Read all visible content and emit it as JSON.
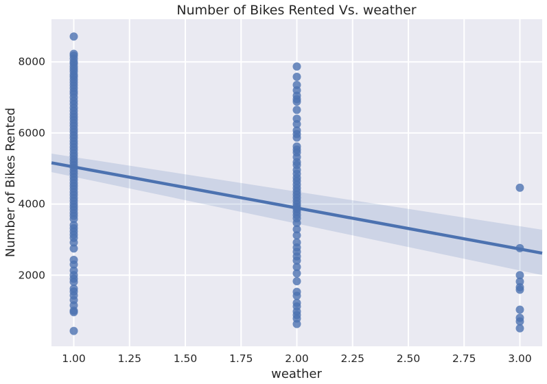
{
  "chart_data": {
    "type": "scatter",
    "title": "Number of Bikes Rented Vs. weather",
    "xlabel": "weather",
    "ylabel": "Number of Bikes Rented",
    "xlim": [
      0.9,
      3.1
    ],
    "ylim": [
      0,
      9200
    ],
    "x_ticks": [
      1.0,
      1.25,
      1.5,
      1.75,
      2.0,
      2.25,
      2.5,
      2.75,
      3.0
    ],
    "x_tick_labels": [
      "1.00",
      "1.25",
      "1.50",
      "1.75",
      "2.00",
      "2.25",
      "2.50",
      "2.75",
      "3.00"
    ],
    "y_ticks": [
      2000,
      4000,
      6000,
      8000
    ],
    "y_tick_labels": [
      "2000",
      "4000",
      "6000",
      "8000"
    ],
    "grid": true,
    "colors": {
      "background": "#eaeaf2",
      "points": "#4c72b0",
      "line": "#4c72b0",
      "grid": "#ffffff"
    },
    "series": [
      {
        "x": 1.0,
        "y": [
          8714,
          8227,
          8173,
          8090,
          8000,
          7950,
          7870,
          7800,
          7730,
          7640,
          7580,
          7500,
          7420,
          7340,
          7260,
          7170,
          7100,
          7000,
          6900,
          6810,
          6710,
          6620,
          6530,
          6450,
          6370,
          6280,
          6200,
          6110,
          6030,
          5940,
          5860,
          5770,
          5690,
          5600,
          5520,
          5430,
          5350,
          5260,
          5180,
          5100,
          5020,
          4930,
          4850,
          4760,
          4680,
          4590,
          4510,
          4430,
          4340,
          4260,
          4170,
          4090,
          4000,
          3920,
          3840,
          3750,
          3670,
          3580,
          3410,
          3320,
          3230,
          3140,
          3050,
          2920,
          2750,
          2430,
          2300,
          2130,
          2000,
          1900,
          1810,
          1620,
          1540,
          1430,
          1300,
          1150,
          1000,
          960,
          431
        ]
      },
      {
        "x": 2.0,
        "y": [
          7870,
          7580,
          7350,
          7200,
          7050,
          6950,
          6880,
          6650,
          6400,
          6250,
          6070,
          5970,
          5870,
          5620,
          5530,
          5450,
          5320,
          5180,
          5100,
          4960,
          4850,
          4740,
          4650,
          4550,
          4450,
          4360,
          4270,
          4180,
          4090,
          4000,
          3920,
          3860,
          3780,
          3690,
          3600,
          3470,
          3290,
          3120,
          2920,
          2780,
          2660,
          2530,
          2410,
          2230,
          2050,
          1830,
          1530,
          1420,
          1220,
          1120,
          980,
          880,
          780,
          627
        ]
      },
      {
        "x": 3.0,
        "y": [
          4460,
          2760,
          2000,
          1820,
          1660,
          1590,
          1030,
          800,
          700,
          506
        ]
      }
    ],
    "regression": {
      "x": [
        0.9,
        3.1
      ],
      "y": [
        5160,
        2620
      ],
      "ci_low": [
        4900,
        2000
      ],
      "ci_high": [
        5420,
        3280
      ]
    }
  }
}
